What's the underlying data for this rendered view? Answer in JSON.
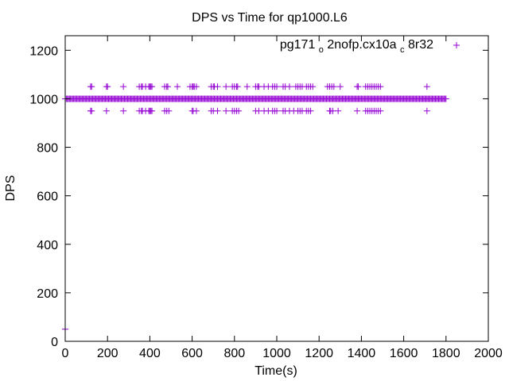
{
  "chart_data": {
    "type": "scatter",
    "title": "DPS vs Time for qp1000.L6",
    "xlabel": "Time(s)",
    "ylabel": "DPS",
    "xlim": [
      0,
      2000
    ],
    "ylim": [
      0,
      1260
    ],
    "xticks": [
      0,
      200,
      400,
      600,
      800,
      1000,
      1200,
      1400,
      1600,
      1800,
      2000
    ],
    "yticks": [
      0,
      200,
      400,
      600,
      800,
      1000,
      1200
    ],
    "grid": false,
    "legend_position": "top-right",
    "marker": "plus",
    "series": [
      {
        "legend_parts": [
          "pg171",
          "o",
          "2nofp.cx10a",
          "c",
          "8r32"
        ],
        "color": "#9400d3",
        "start": {
          "time": 0,
          "dps": 50
        },
        "baseline": {
          "dps": 1000,
          "from_time": 0,
          "to_time": 1800,
          "step": 5
        },
        "high_points": {
          "dps": 1050,
          "times": [
            120,
            125,
            195,
            200,
            275,
            350,
            360,
            365,
            380,
            395,
            400,
            405,
            410,
            470,
            480,
            485,
            530,
            590,
            600,
            605,
            610,
            620,
            690,
            700,
            705,
            720,
            760,
            790,
            800,
            810,
            815,
            860,
            900,
            910,
            915,
            940,
            960,
            980,
            990,
            1000,
            1030,
            1040,
            1060,
            1090,
            1100,
            1110,
            1120,
            1140,
            1150,
            1160,
            1170,
            1240,
            1250,
            1260,
            1270,
            1300,
            1380,
            1385,
            1420,
            1430,
            1440,
            1450,
            1460,
            1470,
            1480,
            1490,
            1710
          ]
        },
        "low_points": {
          "dps": 950,
          "times": [
            120,
            125,
            195,
            275,
            350,
            360,
            365,
            380,
            395,
            400,
            405,
            410,
            470,
            480,
            490,
            600,
            605,
            620,
            690,
            700,
            720,
            760,
            790,
            800,
            810,
            820,
            900,
            915,
            940,
            960,
            980,
            990,
            1000,
            1030,
            1040,
            1060,
            1080,
            1100,
            1110,
            1120,
            1140,
            1150,
            1160,
            1250,
            1255,
            1265,
            1290,
            1380,
            1420,
            1430,
            1440,
            1450,
            1460,
            1470,
            1480,
            1490,
            1710
          ]
        }
      }
    ]
  }
}
